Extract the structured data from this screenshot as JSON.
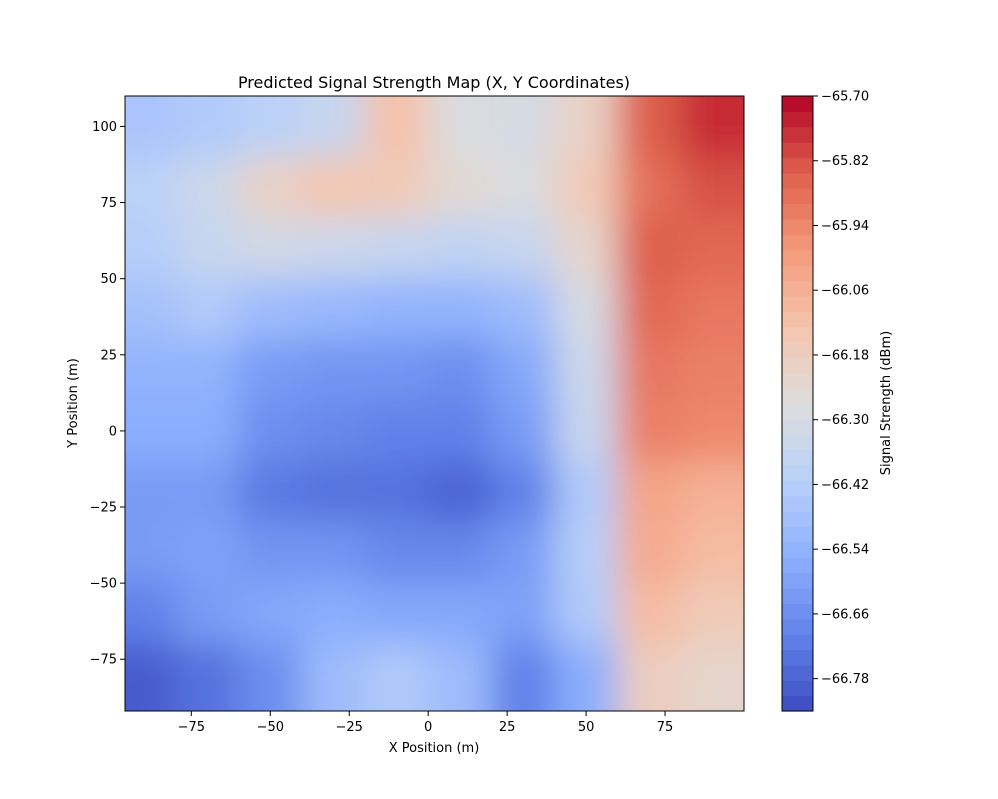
{
  "chart_data": {
    "type": "heatmap",
    "title": "Predicted Signal Strength Map (X, Y Coordinates)",
    "xlabel": "X Position (m)",
    "ylabel": "Y Position (m)",
    "colorbar_label": "Signal Strength (dBm)",
    "colormap": "coolwarm",
    "xlim": [
      -96,
      100
    ],
    "ylim": [
      -92,
      110
    ],
    "x_ticks": [
      -75,
      -50,
      -25,
      0,
      25,
      50,
      75
    ],
    "x_tick_labels": [
      "−75",
      "−50",
      "−25",
      "0",
      "25",
      "50",
      "75"
    ],
    "y_ticks": [
      -75,
      -50,
      -25,
      0,
      25,
      50,
      75,
      100
    ],
    "y_tick_labels": [
      "−75",
      "−50",
      "−25",
      "0",
      "25",
      "50",
      "75",
      "100"
    ],
    "colorbar_range": [
      -66.84,
      -65.7
    ],
    "colorbar_ticks": [
      -65.7,
      -65.82,
      -65.94,
      -66.06,
      -66.18,
      -66.3,
      -66.42,
      -66.54,
      -66.66,
      -66.78
    ],
    "colorbar_tick_labels": [
      "−65.70",
      "−65.82",
      "−65.94",
      "−66.06",
      "−66.18",
      "−66.30",
      "−66.42",
      "−66.54",
      "−66.66",
      "−66.78"
    ],
    "x_samples": [
      -90,
      -70,
      -50,
      -30,
      -10,
      10,
      30,
      50,
      70,
      90
    ],
    "y_samples": [
      100,
      80,
      60,
      40,
      20,
      0,
      -20,
      -40,
      -60,
      -80
    ],
    "values": [
      [
        -66.46,
        -66.44,
        -66.4,
        -66.36,
        -66.12,
        -66.28,
        -66.3,
        -66.2,
        -65.84,
        -65.76
      ],
      [
        -66.4,
        -66.34,
        -66.2,
        -66.14,
        -66.16,
        -66.24,
        -66.28,
        -66.16,
        -65.88,
        -65.82
      ],
      [
        -66.42,
        -66.36,
        -66.32,
        -66.34,
        -66.36,
        -66.38,
        -66.36,
        -66.22,
        -65.84,
        -65.86
      ],
      [
        -66.48,
        -66.44,
        -66.5,
        -66.52,
        -66.54,
        -66.54,
        -66.5,
        -66.3,
        -65.86,
        -65.9
      ],
      [
        -66.54,
        -66.54,
        -66.62,
        -66.64,
        -66.64,
        -66.66,
        -66.58,
        -66.34,
        -65.9,
        -65.92
      ],
      [
        -66.56,
        -66.56,
        -66.66,
        -66.68,
        -66.7,
        -66.7,
        -66.62,
        -66.36,
        -65.92,
        -65.94
      ],
      [
        -66.62,
        -66.62,
        -66.72,
        -66.74,
        -66.74,
        -66.78,
        -66.7,
        -66.44,
        -66.02,
        -66.06
      ],
      [
        -66.62,
        -66.6,
        -66.64,
        -66.64,
        -66.68,
        -66.68,
        -66.62,
        -66.42,
        -66.04,
        -66.1
      ],
      [
        -66.7,
        -66.62,
        -66.58,
        -66.56,
        -66.58,
        -66.58,
        -66.6,
        -66.44,
        -66.1,
        -66.16
      ],
      [
        -66.8,
        -66.74,
        -66.66,
        -66.5,
        -66.44,
        -66.5,
        -66.7,
        -66.56,
        -66.18,
        -66.22
      ]
    ]
  }
}
